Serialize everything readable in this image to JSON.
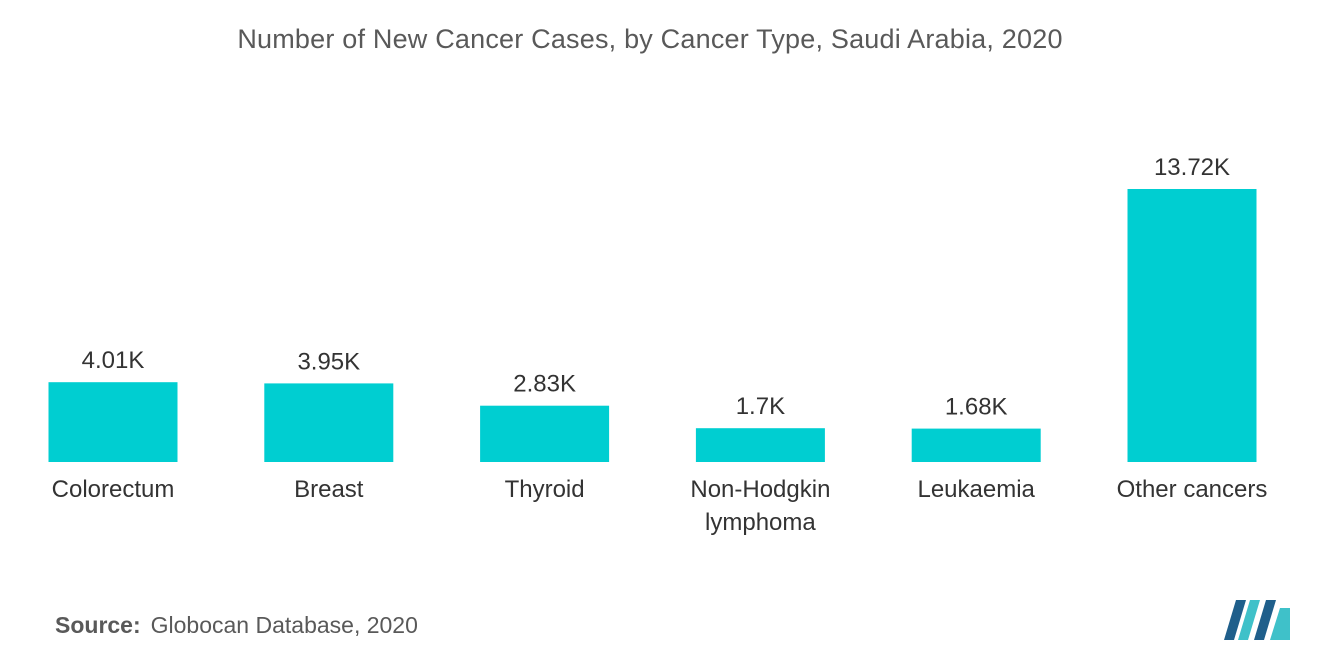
{
  "title": "Number of New Cancer Cases, by Cancer Type, Saudi Arabia, 2020",
  "source": {
    "label": "Source:",
    "text": "Globocan Database, 2020"
  },
  "colors": {
    "bar": "#00ced1",
    "logo_dark": "#1f5f8b",
    "logo_light": "#3fc1c9"
  },
  "chart_data": {
    "type": "bar",
    "title": "Number of New Cancer Cases, by Cancer Type, Saudi Arabia, 2020",
    "xlabel": "",
    "ylabel": "",
    "grid": false,
    "legend": "none",
    "categories": [
      "Colorectum",
      "Breast",
      "Thyroid",
      "Non-Hodgkin lymphoma",
      "Leukaemia",
      "Other cancers"
    ],
    "category_lines": [
      [
        "Colorectum"
      ],
      [
        "Breast"
      ],
      [
        "Thyroid"
      ],
      [
        "Non-Hodgkin",
        "lymphoma"
      ],
      [
        "Leukaemia"
      ],
      [
        "Other cancers"
      ]
    ],
    "values": [
      4.01,
      3.95,
      2.83,
      1.7,
      1.68,
      13.72
    ],
    "value_labels": [
      "4.01K",
      "3.95K",
      "2.83K",
      "1.7K",
      "1.68K",
      "13.72K"
    ],
    "unit": "K",
    "ylim": [
      0,
      13.72
    ]
  }
}
